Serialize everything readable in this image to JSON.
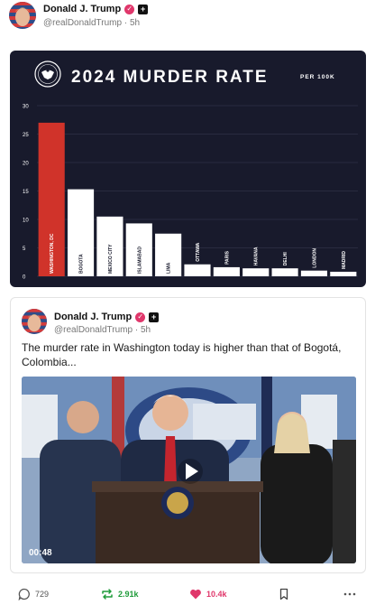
{
  "post": {
    "author_name": "Donald J. Trump",
    "handle": "@realDonaldTrump",
    "separator": "·",
    "time": "5h"
  },
  "chart": {
    "title": "2024 MURDER RATE",
    "subtitle": "PER 100K",
    "seal_icon": "presidential-seal-icon"
  },
  "chart_data": {
    "type": "bar",
    "title": "2024 MURDER RATE",
    "subtitle": "PER 100K",
    "categories": [
      "WASHINGTON, DC",
      "BOGOTA",
      "MEXICO CITY",
      "ISLAMABAD",
      "LIMA",
      "OTTAWA",
      "PARIS",
      "HAVANA",
      "DELHI",
      "LONDON",
      "MADRID"
    ],
    "values": [
      27,
      15.3,
      10.5,
      9.3,
      7.5,
      2.1,
      1.6,
      1.4,
      1.4,
      1.0,
      0.8
    ],
    "highlight_index": 0,
    "colors": {
      "highlight": "#d0332a",
      "bar": "#ffffff",
      "background": "#181a2c",
      "grid": "#3a3d52"
    },
    "yticks": [
      0,
      5,
      10,
      15,
      20,
      25,
      30
    ],
    "ylim": [
      0,
      30
    ],
    "grid": true,
    "xlabel": "",
    "ylabel": ""
  },
  "quote": {
    "author_name": "Donald J. Trump",
    "handle": "@realDonaldTrump",
    "separator": "·",
    "time": "5h",
    "text": "The murder rate in Washington today is higher than that of Bogotá, Colombia...",
    "video_duration": "00:48"
  },
  "actions": {
    "replies": "729",
    "reposts": "2.91k",
    "likes": "10.4k"
  }
}
